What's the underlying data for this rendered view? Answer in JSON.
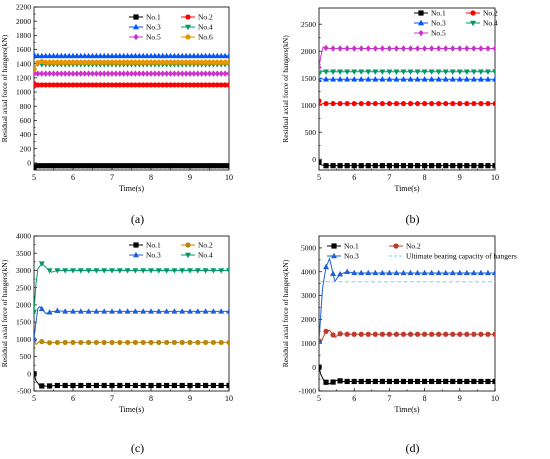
{
  "panels": [
    {
      "label": "(a)",
      "chart_data": {
        "type": "line",
        "xlabel": "Time(s)",
        "ylabel": "Residual axial force of hangers(kN)",
        "xlim": [
          5,
          10
        ],
        "ylim": [
          -100,
          2200
        ],
        "xticks": [
          5,
          6,
          7,
          8,
          9,
          10
        ],
        "yticks": [
          0,
          200,
          400,
          600,
          800,
          1000,
          1200,
          1400,
          1600,
          1800,
          2000,
          2200
        ],
        "grid": false,
        "legend": {
          "position": "top",
          "columns": 2
        },
        "marker_every": 0.1,
        "series": [
          {
            "name": "No.1",
            "color": "#000000",
            "marker": "square",
            "x": [
              5,
              5.02,
              5.05,
              5.1,
              10
            ],
            "y": [
              -60,
              -20,
              -50,
              -40,
              -40
            ]
          },
          {
            "name": "No.2",
            "color": "#ff0000",
            "marker": "circle",
            "x": [
              5,
              5.03,
              5.08,
              10
            ],
            "y": [
              1120,
              1060,
              1100,
              1100
            ]
          },
          {
            "name": "No.3",
            "color": "#0055ff",
            "marker": "triangle-up",
            "x": [
              5,
              5.03,
              5.08,
              10
            ],
            "y": [
              1530,
              1480,
              1510,
              1510
            ]
          },
          {
            "name": "No.4",
            "color": "#009966",
            "marker": "triangle-down",
            "x": [
              5,
              5.04,
              5.1,
              5.2,
              10
            ],
            "y": [
              1300,
              1370,
              1400,
              1390,
              1390
            ]
          },
          {
            "name": "No.5",
            "color": "#cc33cc",
            "marker": "diamond",
            "x": [
              5,
              5.04,
              5.1,
              10
            ],
            "y": [
              1270,
              1240,
              1260,
              1260
            ]
          },
          {
            "name": "No.6",
            "color": "#e69500",
            "marker": "pentagon",
            "x": [
              5,
              5.06,
              5.14,
              5.25,
              10
            ],
            "y": [
              1320,
              1390,
              1440,
              1420,
              1420
            ]
          }
        ]
      }
    },
    {
      "label": "(b)",
      "chart_data": {
        "type": "line",
        "xlabel": "Time(s)",
        "ylabel": "Residual axial force of hangers(kN)",
        "xlim": [
          5,
          10
        ],
        "ylim": [
          -200,
          2800
        ],
        "xticks": [
          5,
          6,
          7,
          8,
          9,
          10
        ],
        "yticks": [
          0,
          500,
          1000,
          1500,
          2000,
          2500
        ],
        "grid": false,
        "legend": {
          "position": "top-right",
          "columns": 2
        },
        "marker_every": 0.2,
        "series": [
          {
            "name": "No.1",
            "color": "#000000",
            "marker": "square",
            "x": [
              5,
              5.05,
              5.15,
              10
            ],
            "y": [
              -60,
              -100,
              -120,
              -120
            ]
          },
          {
            "name": "No.2",
            "color": "#ff0000",
            "marker": "circle",
            "x": [
              5,
              5.04,
              5.1,
              10
            ],
            "y": [
              1080,
              1000,
              1030,
              1030
            ]
          },
          {
            "name": "No.3",
            "color": "#0055ff",
            "marker": "triangle-up",
            "x": [
              5,
              5.05,
              5.12,
              10
            ],
            "y": [
              1470,
              1500,
              1480,
              1480
            ]
          },
          {
            "name": "No.4",
            "color": "#009966",
            "marker": "triangle-down",
            "x": [
              5,
              5.05,
              5.15,
              10
            ],
            "y": [
              1580,
              1640,
              1620,
              1620
            ]
          },
          {
            "name": "No.5",
            "color": "#cc33cc",
            "marker": "diamond",
            "x": [
              5,
              5.05,
              5.12,
              5.2,
              5.3,
              10
            ],
            "y": [
              1700,
              1900,
              2080,
              2060,
              2050,
              2050
            ]
          }
        ]
      }
    },
    {
      "label": "(c)",
      "chart_data": {
        "type": "line",
        "xlabel": "Time(s)",
        "ylabel": "Residual axial force of hangers(kN)",
        "xlim": [
          5,
          10
        ],
        "ylim": [
          -500,
          4000
        ],
        "xticks": [
          5,
          6,
          7,
          8,
          9,
          10
        ],
        "yticks": [
          -500,
          0,
          500,
          1000,
          1500,
          2000,
          2500,
          3000,
          3500,
          4000
        ],
        "grid": false,
        "legend": {
          "position": "top-right",
          "columns": 2
        },
        "marker_every": 0.2,
        "series": [
          {
            "name": "No.1",
            "color": "#000000",
            "marker": "square",
            "x": [
              5,
              5.05,
              5.15,
              5.3,
              5.6,
              10
            ],
            "y": [
              0,
              -200,
              -350,
              -360,
              -340,
              -340
            ]
          },
          {
            "name": "No.2",
            "color": "#b8860b",
            "marker": "circle",
            "x": [
              5,
              5.05,
              5.15,
              5.3,
              5.6,
              10
            ],
            "y": [
              1000,
              850,
              950,
              900,
              910,
              910
            ]
          },
          {
            "name": "No.3",
            "color": "#1f5fd6",
            "marker": "triangle-up",
            "x": [
              5,
              5.05,
              5.1,
              5.15,
              5.3,
              5.45,
              5.6,
              5.8,
              10
            ],
            "y": [
              1000,
              1500,
              1900,
              1950,
              1750,
              1800,
              1830,
              1810,
              1810
            ]
          },
          {
            "name": "No.4",
            "color": "#009966",
            "marker": "triangle-down",
            "x": [
              5,
              5.05,
              5.1,
              5.2,
              5.3,
              5.45,
              5.6,
              5.8,
              10
            ],
            "y": [
              1800,
              2600,
              3050,
              3200,
              3100,
              2950,
              3000,
              3000,
              3000
            ]
          }
        ]
      }
    },
    {
      "label": "(d)",
      "chart_data": {
        "type": "line",
        "xlabel": "Time(s)",
        "ylabel": "Residual axial force of hangers(kN)",
        "xlim": [
          5,
          10
        ],
        "ylim": [
          -1000,
          5500
        ],
        "xticks": [
          5,
          6,
          7,
          8,
          9,
          10
        ],
        "yticks": [
          -1000,
          0,
          1000,
          2000,
          3000,
          4000,
          5000
        ],
        "grid": false,
        "legend": {
          "position": "top",
          "columns": 2
        },
        "marker_every": 0.2,
        "series": [
          {
            "name": "No.1",
            "color": "#000000",
            "marker": "square",
            "x": [
              5,
              5.05,
              5.15,
              5.3,
              5.5,
              5.7,
              10
            ],
            "y": [
              0,
              -300,
              -600,
              -700,
              -550,
              -600,
              -600
            ]
          },
          {
            "name": "No.2",
            "color": "#c0392b",
            "marker": "circle",
            "x": [
              5,
              5.05,
              5.1,
              5.2,
              5.3,
              5.45,
              5.6,
              5.8,
              10
            ],
            "y": [
              1100,
              1000,
              1200,
              1500,
              1550,
              1250,
              1400,
              1380,
              1380
            ]
          },
          {
            "name": "No.3",
            "color": "#1f5fd6",
            "marker": "triangle-up",
            "x": [
              5,
              5.05,
              5.1,
              5.2,
              5.3,
              5.45,
              5.6,
              5.8,
              6,
              10
            ],
            "y": [
              1100,
              2200,
              3300,
              4200,
              4550,
              3600,
              3900,
              4000,
              3950,
              3950
            ]
          },
          {
            "name": "Ultimate bearing capacity of hangers",
            "color": "#7fd0ff",
            "dashed": true,
            "x": [
              5,
              10
            ],
            "y": [
              3580,
              3580
            ]
          }
        ]
      }
    }
  ]
}
